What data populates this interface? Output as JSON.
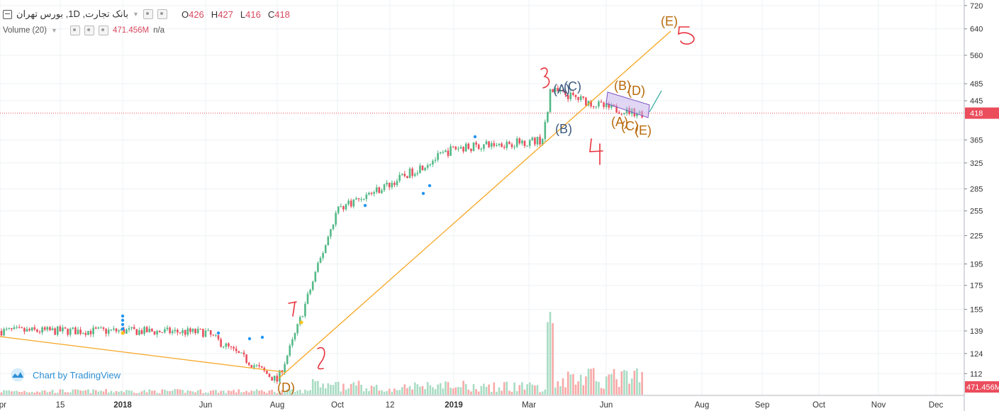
{
  "header": {
    "symbol_title": "بانک تجارت, 1D, بورس تهران",
    "open_label": "O",
    "open_value": "426",
    "high_label": "H",
    "high_value": "427",
    "low_label": "L",
    "low_value": "416",
    "close_label": "C",
    "close_value": "418",
    "volume_label": "Volume (20)",
    "volume_value": "471.456M",
    "volume_ma_value": "n/a"
  },
  "watermark": {
    "text": "Chart by TradingView"
  },
  "price_axis": {
    "ticks": [
      720,
      640,
      560,
      485,
      445,
      418,
      365,
      325,
      285,
      255,
      225,
      195,
      175,
      155,
      139,
      124,
      112
    ],
    "last_price_label": "418",
    "volume_badge": "471.456M"
  },
  "time_axis": {
    "labels": [
      "Apr",
      "15",
      "2018",
      "Jun",
      "Aug",
      "Oct",
      "12",
      "2019",
      "Mar",
      "Jun",
      "Aug",
      "Sep",
      "Oct",
      "Nov",
      "Dec"
    ]
  },
  "annotations": {
    "wave_labels": [
      "(D)",
      "(A)",
      "(C)",
      "(B)",
      "(B)",
      "(D)",
      "(A)",
      "(C)",
      "(E)",
      "(E)"
    ],
    "handwritten_numbers": [
      "1",
      "2",
      "3",
      "4",
      "5"
    ]
  },
  "chart_data": {
    "type": "candlestick",
    "y_scale": "log",
    "ylim": [
      104,
      730
    ],
    "x_range_labels": [
      "Apr",
      "Dec"
    ],
    "trend_series": [
      {
        "x": "Apr",
        "y": 139
      },
      {
        "x": "2018",
        "y": 139
      },
      {
        "x": "Jun",
        "y": 138
      },
      {
        "x": "Aug",
        "y": 108
      },
      {
        "x": "Aug",
        "y": 132
      },
      {
        "x": "Oct",
        "y": 258
      },
      {
        "x": "12",
        "y": 292
      },
      {
        "x": "2019",
        "y": 350
      },
      {
        "x": "Mar",
        "y": 365
      },
      {
        "x": "Mar",
        "y": 470
      },
      {
        "x": "Jun",
        "y": 430
      },
      {
        "x": "Jun",
        "y": 418
      }
    ],
    "last_close": 418,
    "colors": {
      "up": "#53b987",
      "down": "#eb4d5c",
      "trendline": "#f5a623",
      "channel": "#c8b6ec",
      "last_price": "#eb4d5c",
      "ink": "#e8323c"
    },
    "grid": true
  }
}
